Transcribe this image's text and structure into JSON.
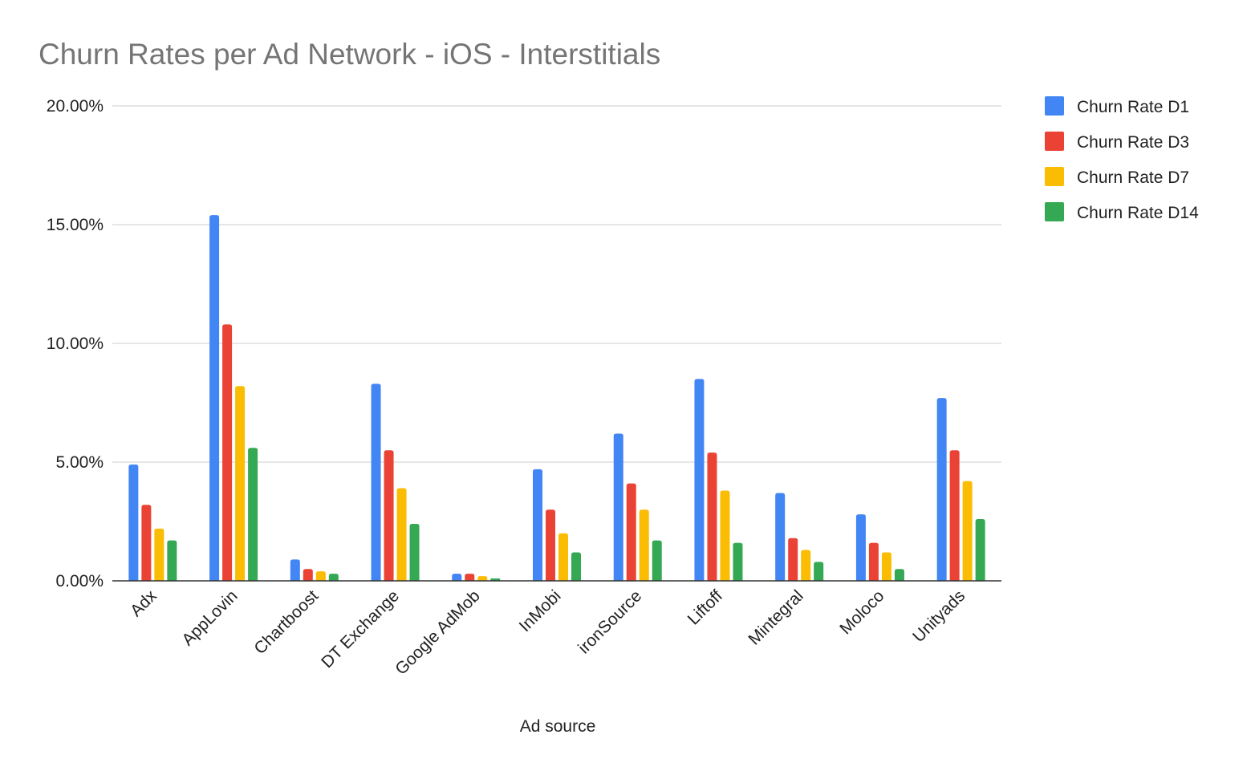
{
  "chart_data": {
    "type": "bar",
    "title": "Churn Rates per Ad Network - iOS - Interstitials",
    "xlabel": "Ad source",
    "ylabel": "",
    "ylim": [
      0,
      0.2
    ],
    "yticks": [
      {
        "value": 0,
        "label": "0.00%"
      },
      {
        "value": 0.05,
        "label": "5.00%"
      },
      {
        "value": 0.1,
        "label": "10.00%"
      },
      {
        "value": 0.15,
        "label": "15.00%"
      },
      {
        "value": 0.2,
        "label": "20.00%"
      }
    ],
    "grid": true,
    "legend_position": "right",
    "categories": [
      "Adx",
      "AppLovin",
      "Chartboost",
      "DT Exchange",
      "Google AdMob",
      "InMobi",
      "ironSource",
      "Liftoff",
      "Mintegral",
      "Moloco",
      "Unityads"
    ],
    "series": [
      {
        "name": "Churn Rate D1",
        "color": "#4285F4",
        "values": [
          0.049,
          0.154,
          0.009,
          0.083,
          0.003,
          0.047,
          0.062,
          0.085,
          0.037,
          0.028,
          0.077
        ]
      },
      {
        "name": "Churn Rate D3",
        "color": "#EA4335",
        "values": [
          0.032,
          0.108,
          0.005,
          0.055,
          0.003,
          0.03,
          0.041,
          0.054,
          0.018,
          0.016,
          0.055
        ]
      },
      {
        "name": "Churn Rate D7",
        "color": "#FBBC04",
        "values": [
          0.022,
          0.082,
          0.004,
          0.039,
          0.002,
          0.02,
          0.03,
          0.038,
          0.013,
          0.012,
          0.042
        ]
      },
      {
        "name": "Churn Rate D14",
        "color": "#34A853",
        "values": [
          0.017,
          0.056,
          0.003,
          0.024,
          0.001,
          0.012,
          0.017,
          0.016,
          0.008,
          0.005,
          0.026
        ]
      }
    ]
  }
}
